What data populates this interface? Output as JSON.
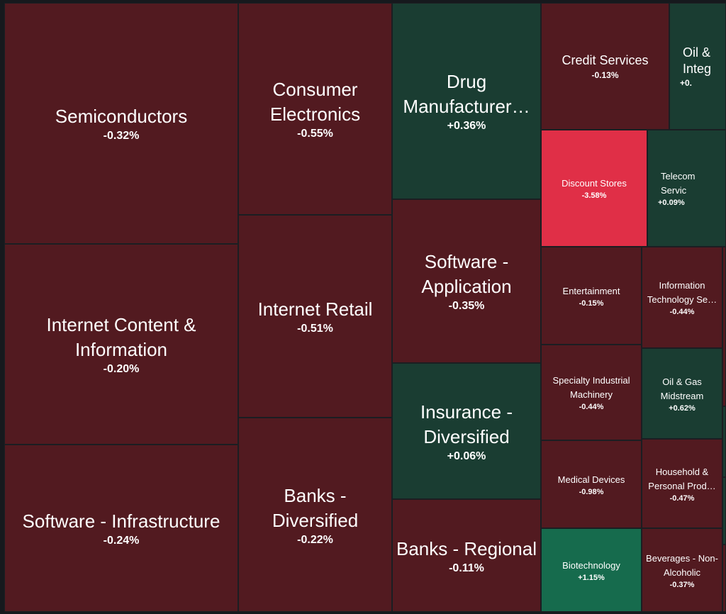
{
  "chart_data": {
    "type": "treemap",
    "title": "",
    "colors": {
      "down": "#521a20",
      "down_strong": "#e02f47",
      "up": "#1a3d32",
      "up_strong": "#166b4d",
      "border": "#1b1e22"
    },
    "tiles": [
      {
        "name": "Semiconductors",
        "change": "-0.32%",
        "value": -0.32
      },
      {
        "name": "Internet Content & Information",
        "change": "-0.20%",
        "value": -0.2
      },
      {
        "name": "Software - Infrastructure",
        "change": "-0.24%",
        "value": -0.24
      },
      {
        "name": "Consumer Electronics",
        "change": "-0.55%",
        "value": -0.55
      },
      {
        "name": "Internet Retail",
        "change": "-0.51%",
        "value": -0.51
      },
      {
        "name": "Banks - Diversified",
        "change": "-0.22%",
        "value": -0.22
      },
      {
        "name": "Drug Manufacturer…",
        "change": "+0.36%",
        "value": 0.36
      },
      {
        "name": "Software - Application",
        "change": "-0.35%",
        "value": -0.35
      },
      {
        "name": "Insurance - Diversified",
        "change": "+0.06%",
        "value": 0.06
      },
      {
        "name": "Banks - Regional",
        "change": "-0.11%",
        "value": -0.11
      },
      {
        "name": "Credit Services",
        "change": "-0.13%",
        "value": -0.13
      },
      {
        "name": "Oil & Integ",
        "change": "+0.",
        "value": null
      },
      {
        "name": "Discount Stores",
        "change": "-3.58%",
        "value": -3.58
      },
      {
        "name": "Telecom Servic",
        "change": "+0.09%",
        "value": 0.09
      },
      {
        "name": "Entertainment",
        "change": "-0.15%",
        "value": -0.15
      },
      {
        "name": "Information Technology Se…",
        "change": "-0.44%",
        "value": -0.44
      },
      {
        "name": "Specialty Industrial Machinery",
        "change": "-0.44%",
        "value": -0.44
      },
      {
        "name": "Oil & Gas Midstream",
        "change": "+0.62%",
        "value": 0.62
      },
      {
        "name": "Medical Devices",
        "change": "-0.98%",
        "value": -0.98
      },
      {
        "name": "Household & Personal Prod…",
        "change": "-0.47%",
        "value": -0.47
      },
      {
        "name": "Biotechnology",
        "change": "+1.15%",
        "value": 1.15
      },
      {
        "name": "Beverages - Non-Alcoholic",
        "change": "-0.37%",
        "value": -0.37
      }
    ]
  }
}
